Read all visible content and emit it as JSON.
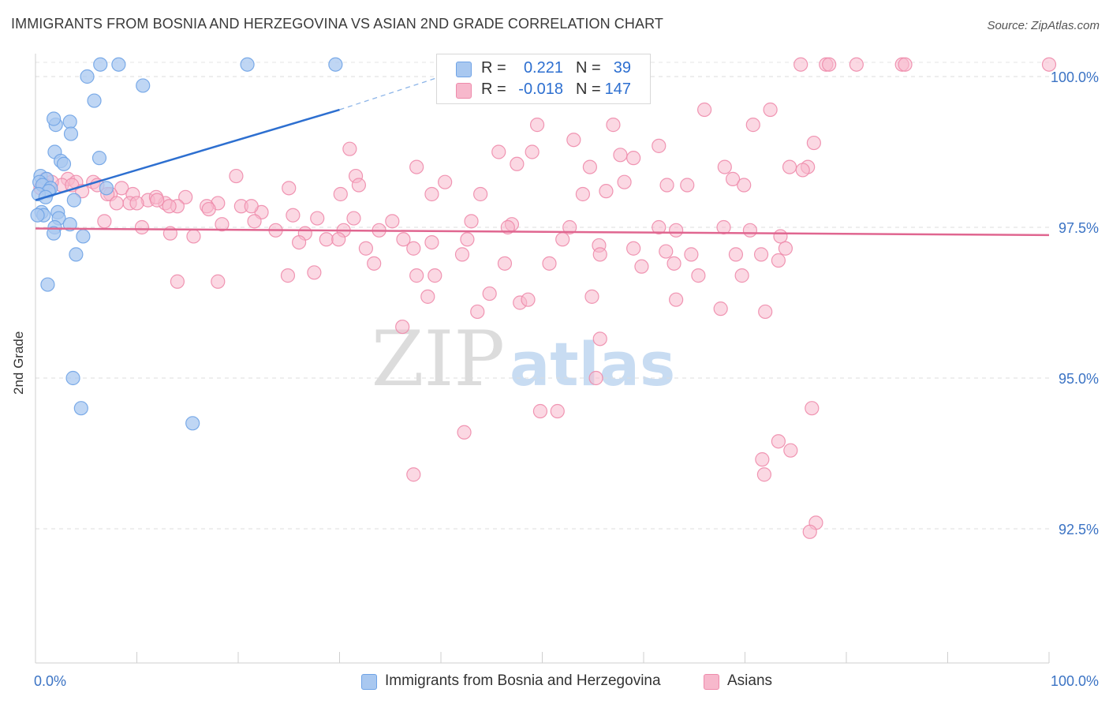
{
  "header": {
    "title": "IMMIGRANTS FROM BOSNIA AND HERZEGOVINA VS ASIAN 2ND GRADE CORRELATION CHART",
    "source": "Source: ZipAtlas.com"
  },
  "watermark": {
    "zip": "ZIP",
    "atlas": "atlas"
  },
  "legend": {
    "rows": [
      {
        "r_label": "R =",
        "r_value": "0.221",
        "n_label": "N =",
        "n_value": "39",
        "color": "#a9c8f0"
      },
      {
        "r_label": "R =",
        "r_value": "-0.018",
        "n_label": "N =",
        "n_value": "147",
        "color": "#f7b8cc"
      }
    ]
  },
  "bottom_legend": {
    "items": [
      {
        "label": "Immigrants from Bosnia and Herzegovina",
        "color": "#a9c8f0"
      },
      {
        "label": "Asians",
        "color": "#f7b8cc"
      }
    ]
  },
  "chart_data": {
    "type": "scatter",
    "title": "IMMIGRANTS FROM BOSNIA AND HERZEGOVINA VS ASIAN 2ND GRADE CORRELATION CHART",
    "xlabel": "",
    "ylabel": "2nd Grade",
    "xlim": [
      0,
      100
    ],
    "ylim": [
      90.0,
      100.5
    ],
    "x_tick_labels": [
      "0.0%",
      "100.0%"
    ],
    "y_ticks": [
      {
        "value": 100.0,
        "label": "100.0%"
      },
      {
        "value": 97.5,
        "label": "97.5%"
      },
      {
        "value": 95.0,
        "label": "95.0%"
      },
      {
        "value": 92.5,
        "label": "92.5%"
      }
    ],
    "grid": "horizontal dashed",
    "legend_position": "top-center",
    "series": [
      {
        "name": "Immigrants from Bosnia and Herzegovina",
        "color": "#6fa3e6",
        "fill": "#a9c8f0",
        "trend": {
          "x": [
            0,
            30
          ],
          "y": [
            97.95,
            99.45
          ],
          "dashed_to": [
            40,
            100.0
          ],
          "color": "#2d6fd0"
        },
        "points": [
          [
            6.4,
            100.2
          ],
          [
            8.2,
            100.2
          ],
          [
            20.9,
            100.2
          ],
          [
            29.6,
            100.2
          ],
          [
            5.1,
            100.0
          ],
          [
            10.6,
            99.85
          ],
          [
            5.8,
            99.6
          ],
          [
            2.0,
            99.2
          ],
          [
            1.8,
            99.3
          ],
          [
            3.4,
            99.25
          ],
          [
            3.5,
            99.05
          ],
          [
            1.9,
            98.75
          ],
          [
            6.3,
            98.65
          ],
          [
            2.5,
            98.6
          ],
          [
            2.8,
            98.55
          ],
          [
            0.5,
            98.35
          ],
          [
            1.1,
            98.3
          ],
          [
            0.4,
            98.25
          ],
          [
            0.7,
            98.2
          ],
          [
            1.5,
            98.15
          ],
          [
            7.0,
            98.15
          ],
          [
            1.3,
            98.1
          ],
          [
            0.3,
            98.05
          ],
          [
            3.8,
            97.95
          ],
          [
            0.6,
            97.75
          ],
          [
            2.2,
            97.75
          ],
          [
            0.8,
            97.7
          ],
          [
            2.3,
            97.65
          ],
          [
            3.4,
            97.55
          ],
          [
            1.9,
            97.5
          ],
          [
            1.8,
            97.4
          ],
          [
            4.7,
            97.35
          ],
          [
            4.0,
            97.05
          ],
          [
            1.2,
            96.55
          ],
          [
            3.7,
            95.0
          ],
          [
            4.5,
            94.5
          ],
          [
            15.5,
            94.25
          ],
          [
            0.2,
            97.7
          ],
          [
            1.0,
            98.0
          ]
        ]
      },
      {
        "name": "Asians",
        "color": "#ee8bab",
        "fill": "#f7b8cc",
        "trend": {
          "x": [
            0,
            100
          ],
          "y": [
            97.48,
            97.37
          ],
          "color": "#e06690"
        },
        "points": [
          [
            75.5,
            100.2
          ],
          [
            78.0,
            100.2
          ],
          [
            78.3,
            100.2
          ],
          [
            81.0,
            100.2
          ],
          [
            85.5,
            100.2
          ],
          [
            85.8,
            100.2
          ],
          [
            100.0,
            100.2
          ],
          [
            66.0,
            99.45
          ],
          [
            72.5,
            99.45
          ],
          [
            49.5,
            99.2
          ],
          [
            57.0,
            99.2
          ],
          [
            70.8,
            99.2
          ],
          [
            53.1,
            98.95
          ],
          [
            61.5,
            98.85
          ],
          [
            31.0,
            98.8
          ],
          [
            45.7,
            98.75
          ],
          [
            49.0,
            98.75
          ],
          [
            57.7,
            98.7
          ],
          [
            76.8,
            98.9
          ],
          [
            47.5,
            98.55
          ],
          [
            59.0,
            98.65
          ],
          [
            37.6,
            98.5
          ],
          [
            54.7,
            98.5
          ],
          [
            68.0,
            98.5
          ],
          [
            68.8,
            98.3
          ],
          [
            74.4,
            98.5
          ],
          [
            76.2,
            98.5
          ],
          [
            75.7,
            98.45
          ],
          [
            19.8,
            98.35
          ],
          [
            31.6,
            98.35
          ],
          [
            40.4,
            98.25
          ],
          [
            58.1,
            98.25
          ],
          [
            62.3,
            98.2
          ],
          [
            64.3,
            98.2
          ],
          [
            69.9,
            98.2
          ],
          [
            31.9,
            98.2
          ],
          [
            25.0,
            98.15
          ],
          [
            30.1,
            98.05
          ],
          [
            39.1,
            98.05
          ],
          [
            43.9,
            98.05
          ],
          [
            54.0,
            98.05
          ],
          [
            56.3,
            98.1
          ],
          [
            14.8,
            98.0
          ],
          [
            18.0,
            97.9
          ],
          [
            3.2,
            98.3
          ],
          [
            4.0,
            98.25
          ],
          [
            5.7,
            98.25
          ],
          [
            8.5,
            98.15
          ],
          [
            9.6,
            98.05
          ],
          [
            11.1,
            97.95
          ],
          [
            12.8,
            97.9
          ],
          [
            14.0,
            97.85
          ],
          [
            16.9,
            97.85
          ],
          [
            20.3,
            97.85
          ],
          [
            22.3,
            97.75
          ],
          [
            25.4,
            97.7
          ],
          [
            27.8,
            97.65
          ],
          [
            31.4,
            97.65
          ],
          [
            35.2,
            97.6
          ],
          [
            43.0,
            97.6
          ],
          [
            47.0,
            97.55
          ],
          [
            52.7,
            97.5
          ],
          [
            61.5,
            97.5
          ],
          [
            63.2,
            97.45
          ],
          [
            67.9,
            97.5
          ],
          [
            70.5,
            97.45
          ],
          [
            73.5,
            97.35
          ],
          [
            6.8,
            97.6
          ],
          [
            10.5,
            97.5
          ],
          [
            13.3,
            97.4
          ],
          [
            15.6,
            97.35
          ],
          [
            18.4,
            97.55
          ],
          [
            21.6,
            97.6
          ],
          [
            23.7,
            97.45
          ],
          [
            26.6,
            97.4
          ],
          [
            28.7,
            97.3
          ],
          [
            30.4,
            97.45
          ],
          [
            33.9,
            97.45
          ],
          [
            36.3,
            97.3
          ],
          [
            39.1,
            97.25
          ],
          [
            42.6,
            97.3
          ],
          [
            46.6,
            97.5
          ],
          [
            52.0,
            97.3
          ],
          [
            55.6,
            97.2
          ],
          [
            59.0,
            97.15
          ],
          [
            62.2,
            97.1
          ],
          [
            64.7,
            97.05
          ],
          [
            69.1,
            97.05
          ],
          [
            71.6,
            97.05
          ],
          [
            74.0,
            97.15
          ],
          [
            9.3,
            97.9
          ],
          [
            11.9,
            98.0
          ],
          [
            7.4,
            98.05
          ],
          [
            2.6,
            98.2
          ],
          [
            1.0,
            98.3
          ],
          [
            1.6,
            98.25
          ],
          [
            0.5,
            98.15
          ],
          [
            0.9,
            98.2
          ],
          [
            3.6,
            98.2
          ],
          [
            4.6,
            98.1
          ],
          [
            6.1,
            98.2
          ],
          [
            7.1,
            98.05
          ],
          [
            10.0,
            97.9
          ],
          [
            12.0,
            97.95
          ],
          [
            8.0,
            97.9
          ],
          [
            13.2,
            97.85
          ],
          [
            17.1,
            97.8
          ],
          [
            21.3,
            97.85
          ],
          [
            26.0,
            97.25
          ],
          [
            29.9,
            97.3
          ],
          [
            32.6,
            97.15
          ],
          [
            37.3,
            97.15
          ],
          [
            42.1,
            97.05
          ],
          [
            46.3,
            96.9
          ],
          [
            50.7,
            96.9
          ],
          [
            55.7,
            97.05
          ],
          [
            59.8,
            96.85
          ],
          [
            63.0,
            96.9
          ],
          [
            65.4,
            96.7
          ],
          [
            69.7,
            96.7
          ],
          [
            73.3,
            96.95
          ],
          [
            18.0,
            96.6
          ],
          [
            14.0,
            96.6
          ],
          [
            24.9,
            96.7
          ],
          [
            27.5,
            96.75
          ],
          [
            33.4,
            96.9
          ],
          [
            37.6,
            96.7
          ],
          [
            39.4,
            96.7
          ],
          [
            38.7,
            96.35
          ],
          [
            44.8,
            96.4
          ],
          [
            47.8,
            96.25
          ],
          [
            48.6,
            96.3
          ],
          [
            54.9,
            96.35
          ],
          [
            63.2,
            96.3
          ],
          [
            67.6,
            96.15
          ],
          [
            72.0,
            96.1
          ],
          [
            43.6,
            96.1
          ],
          [
            36.2,
            95.85
          ],
          [
            55.7,
            95.65
          ],
          [
            55.3,
            95.0
          ],
          [
            51.5,
            94.45
          ],
          [
            49.8,
            94.45
          ],
          [
            42.3,
            94.1
          ],
          [
            76.6,
            94.5
          ],
          [
            73.3,
            93.95
          ],
          [
            74.5,
            93.8
          ],
          [
            71.7,
            93.65
          ],
          [
            71.9,
            93.4
          ],
          [
            37.3,
            93.4
          ],
          [
            77.0,
            92.6
          ],
          [
            76.4,
            92.45
          ]
        ]
      }
    ]
  }
}
